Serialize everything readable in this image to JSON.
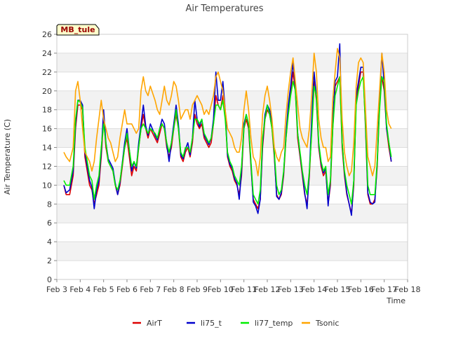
{
  "chart_data": {
    "type": "line",
    "title": "Air Temperatures",
    "xlabel": "Time",
    "ylabel": "Air Temperature (C)",
    "site_label": "MB_tule",
    "xlim": [
      "Feb 3",
      "Feb 18"
    ],
    "ylim": [
      0,
      26
    ],
    "x_ticks": [
      "Feb 3",
      "Feb 4",
      "Feb 5",
      "Feb 6",
      "Feb 7",
      "Feb 8",
      "Feb 9",
      "Feb 10",
      "Feb 11",
      "Feb 12",
      "Feb 13",
      "Feb 14",
      "Feb 15",
      "Feb 16",
      "Feb 17",
      "Feb 18"
    ],
    "y_ticks": [
      0,
      2,
      4,
      6,
      8,
      10,
      12,
      14,
      16,
      18,
      20,
      22,
      24,
      26
    ],
    "grid": "horizontal bands",
    "legend_position": "bottom",
    "x_unit": "days since Feb 3",
    "series": [
      {
        "name": "AirT",
        "color": "#dd0000",
        "x": [
          0.3,
          0.4,
          0.55,
          0.7,
          0.8,
          0.9,
          1.0,
          1.1,
          1.2,
          1.4,
          1.5,
          1.6,
          1.7,
          1.8,
          1.9,
          2.0,
          2.1,
          2.2,
          2.3,
          2.4,
          2.5,
          2.6,
          2.7,
          2.9,
          3.0,
          3.2,
          3.3,
          3.4,
          3.5,
          3.6,
          3.7,
          3.8,
          3.9,
          4.0,
          4.2,
          4.3,
          4.4,
          4.5,
          4.6,
          4.7,
          4.8,
          4.9,
          5.0,
          5.1,
          5.2,
          5.3,
          5.4,
          5.5,
          5.6,
          5.7,
          5.8,
          5.9,
          6.0,
          6.1,
          6.2,
          6.3,
          6.4,
          6.5,
          6.6,
          6.7,
          6.8,
          6.9,
          7.0,
          7.1,
          7.2,
          7.3,
          7.4,
          7.5,
          7.6,
          7.7,
          7.8,
          7.9,
          8.0,
          8.1,
          8.2,
          8.3,
          8.4,
          8.5,
          8.6,
          8.7,
          8.8,
          8.9,
          9.0,
          9.1,
          9.2,
          9.3,
          9.4,
          9.5,
          9.6,
          9.7,
          9.8,
          9.9,
          10.0,
          10.1,
          10.2,
          10.3,
          10.4,
          10.5,
          10.6,
          10.7,
          10.8,
          10.9,
          11.0,
          11.1,
          11.2,
          11.3,
          11.4,
          11.5,
          11.6,
          11.7,
          11.8,
          11.9,
          12.0,
          12.1,
          12.2,
          12.3,
          12.4,
          12.5,
          12.6,
          12.7,
          12.8,
          12.9,
          13.0,
          13.1,
          13.2,
          13.3,
          13.4,
          13.5,
          13.6,
          13.7,
          13.8,
          13.9,
          14.0,
          14.1,
          14.2,
          14.3
        ],
        "values": [
          10,
          9,
          9,
          11,
          16,
          18.5,
          18.5,
          18,
          13,
          10,
          9.5,
          8,
          9,
          10,
          13,
          17,
          14,
          12.5,
          12,
          11.5,
          10,
          9,
          10,
          14,
          15,
          11,
          12,
          11.5,
          14,
          16,
          17.5,
          16,
          15,
          16,
          15,
          14.5,
          15.5,
          16.5,
          16,
          14,
          13,
          14,
          16,
          17.5,
          16,
          13,
          12.5,
          13.5,
          14,
          13,
          14.5,
          17.5,
          16.5,
          16,
          16.5,
          15,
          14.5,
          14,
          14.5,
          16.5,
          19.5,
          18.5,
          18,
          19.5,
          17.5,
          13,
          12,
          11.5,
          10.5,
          10,
          9,
          11,
          16,
          17,
          16,
          12,
          8.5,
          8,
          7.5,
          8.5,
          14,
          17,
          18,
          17.5,
          16,
          13,
          9,
          8.5,
          9,
          11,
          15,
          18,
          20,
          22,
          20,
          15,
          13,
          11,
          9,
          8,
          11,
          16,
          21,
          19,
          14,
          12,
          11,
          11.5,
          8,
          10,
          16,
          20.5,
          21,
          21.5,
          14,
          11,
          9,
          8,
          7,
          10,
          19,
          20.5,
          22,
          22,
          16,
          9,
          8,
          8,
          8.5,
          12,
          18.5,
          21.5,
          20,
          16,
          14,
          12.5
        ]
      },
      {
        "name": "li75_t",
        "color": "#0000cc",
        "x": [
          0.3,
          0.4,
          0.55,
          0.7,
          0.8,
          0.9,
          1.0,
          1.1,
          1.2,
          1.4,
          1.5,
          1.6,
          1.7,
          1.8,
          1.9,
          2.0,
          2.1,
          2.2,
          2.3,
          2.4,
          2.5,
          2.6,
          2.7,
          2.9,
          3.0,
          3.2,
          3.3,
          3.4,
          3.5,
          3.6,
          3.7,
          3.8,
          3.9,
          4.0,
          4.2,
          4.3,
          4.4,
          4.5,
          4.6,
          4.7,
          4.8,
          4.9,
          5.0,
          5.1,
          5.2,
          5.3,
          5.4,
          5.5,
          5.6,
          5.7,
          5.8,
          5.9,
          6.0,
          6.1,
          6.2,
          6.3,
          6.4,
          6.5,
          6.6,
          6.7,
          6.8,
          6.9,
          7.0,
          7.1,
          7.2,
          7.3,
          7.4,
          7.5,
          7.6,
          7.7,
          7.8,
          7.9,
          8.0,
          8.1,
          8.2,
          8.3,
          8.4,
          8.5,
          8.6,
          8.7,
          8.8,
          8.9,
          9.0,
          9.1,
          9.2,
          9.3,
          9.4,
          9.5,
          9.6,
          9.7,
          9.8,
          9.9,
          10.0,
          10.1,
          10.2,
          10.3,
          10.4,
          10.5,
          10.6,
          10.7,
          10.8,
          10.9,
          11.0,
          11.1,
          11.2,
          11.3,
          11.4,
          11.5,
          11.6,
          11.7,
          11.8,
          11.9,
          12.0,
          12.1,
          12.2,
          12.3,
          12.4,
          12.5,
          12.6,
          12.7,
          12.8,
          12.9,
          13.0,
          13.1,
          13.2,
          13.3,
          13.4,
          13.5,
          13.6,
          13.7,
          13.8,
          13.9,
          14.0,
          14.1,
          14.2,
          14.3
        ],
        "values": [
          10,
          9.2,
          9.5,
          11.5,
          16.5,
          19,
          19,
          18.5,
          13.5,
          10.5,
          9.8,
          7.5,
          9.5,
          10.5,
          13.5,
          18,
          14.5,
          12.8,
          12.3,
          11.8,
          10.2,
          9,
          10.3,
          14.5,
          16,
          11.5,
          12.5,
          11.8,
          14.5,
          16.5,
          18.5,
          16.3,
          15.3,
          16.5,
          15.3,
          14.8,
          16,
          17,
          16.5,
          14.3,
          12.5,
          14.5,
          16.5,
          18.5,
          16.5,
          13.2,
          12.8,
          13.8,
          14.5,
          13.2,
          15,
          19,
          17,
          16.2,
          17,
          15.3,
          14.8,
          14.3,
          15,
          17,
          22,
          19,
          19,
          21,
          18,
          13.2,
          12.2,
          11.8,
          10.7,
          10.2,
          8.5,
          11.5,
          16.5,
          17.5,
          16.5,
          12.3,
          8.2,
          7.8,
          7,
          8.5,
          14.5,
          17.5,
          18.5,
          18,
          16.5,
          13.3,
          8.8,
          8.5,
          9.2,
          11.3,
          15.5,
          18.5,
          20.5,
          23,
          20.5,
          15.5,
          13.3,
          11.3,
          9.2,
          7.5,
          11.5,
          17,
          22,
          19.5,
          14.3,
          12.3,
          11.3,
          11.8,
          7.8,
          10.5,
          17,
          21,
          21.5,
          25,
          14.5,
          11.3,
          9.2,
          8,
          6.8,
          10.5,
          19.5,
          21,
          22.5,
          22.5,
          16.5,
          9.2,
          8.2,
          8,
          8.2,
          12.5,
          19,
          24,
          20.5,
          16,
          14.5,
          12.5
        ]
      },
      {
        "name": "li77_temp",
        "color": "#00ee00",
        "x": [
          0.3,
          0.4,
          0.55,
          0.7,
          0.8,
          0.9,
          1.0,
          1.1,
          1.2,
          1.4,
          1.5,
          1.6,
          1.7,
          1.8,
          1.9,
          2.0,
          2.1,
          2.2,
          2.3,
          2.4,
          2.5,
          2.6,
          2.7,
          2.9,
          3.0,
          3.2,
          3.3,
          3.4,
          3.5,
          3.6,
          3.7,
          3.8,
          3.9,
          4.0,
          4.2,
          4.3,
          4.4,
          4.5,
          4.6,
          4.7,
          4.8,
          4.9,
          5.0,
          5.1,
          5.2,
          5.3,
          5.4,
          5.5,
          5.6,
          5.7,
          5.8,
          5.9,
          6.0,
          6.1,
          6.2,
          6.3,
          6.4,
          6.5,
          6.6,
          6.7,
          6.8,
          6.9,
          7.0,
          7.1,
          7.2,
          7.3,
          7.4,
          7.5,
          7.6,
          7.7,
          7.8,
          7.9,
          8.0,
          8.1,
          8.2,
          8.3,
          8.4,
          8.5,
          8.6,
          8.7,
          8.8,
          8.9,
          9.0,
          9.1,
          9.2,
          9.3,
          9.4,
          9.5,
          9.6,
          9.7,
          9.8,
          9.9,
          10.0,
          10.1,
          10.2,
          10.3,
          10.4,
          10.5,
          10.6,
          10.7,
          10.8,
          10.9,
          11.0,
          11.1,
          11.2,
          11.3,
          11.4,
          11.5,
          11.6,
          11.7,
          11.8,
          11.9,
          12.0,
          12.1,
          12.2,
          12.3,
          12.4,
          12.5,
          12.6,
          12.7,
          12.8,
          12.9,
          13.0,
          13.1,
          13.2,
          13.3,
          13.4,
          13.5,
          13.6,
          13.7,
          13.8,
          13.9,
          14.0,
          14.1,
          14.2,
          14.3
        ],
        "values": [
          10.5,
          10,
          10,
          12,
          17,
          19,
          18.8,
          18.2,
          14,
          11,
          10.5,
          8.5,
          10,
          11,
          14,
          16.5,
          14.5,
          12.5,
          12,
          11.5,
          10,
          9.5,
          10.5,
          14,
          15.5,
          12,
          12.5,
          12,
          14,
          16,
          16.5,
          16,
          15.5,
          16,
          15.5,
          15,
          16,
          16.5,
          16,
          14.5,
          13.5,
          14.5,
          16,
          18,
          16,
          13.5,
          13,
          14,
          14,
          13.5,
          15,
          17,
          17,
          16.5,
          17,
          15.5,
          15,
          14.5,
          15,
          16.5,
          18.5,
          18.5,
          18,
          19,
          17,
          13.5,
          12.5,
          12,
          11,
          10.5,
          10,
          12,
          16,
          17.5,
          16.5,
          12.5,
          9,
          8.5,
          8,
          9.5,
          15,
          17,
          18.5,
          17.5,
          16,
          13.5,
          10,
          9,
          9.5,
          11.5,
          15,
          17.5,
          19.5,
          21,
          20,
          15.5,
          13.5,
          11.5,
          10,
          9,
          11.5,
          15.5,
          20.5,
          19.5,
          14.5,
          12.5,
          11.5,
          12,
          9,
          10.5,
          16,
          19.5,
          20.5,
          21.5,
          14.5,
          11.5,
          10,
          9,
          8,
          10.5,
          18.5,
          20,
          21,
          21.5,
          16.5,
          10,
          9,
          9,
          9,
          12.5,
          18,
          21.5,
          21,
          16.5,
          14.5,
          13
        ]
      },
      {
        "name": "Tsonic",
        "color": "#ffa500",
        "x": [
          0.3,
          0.4,
          0.55,
          0.7,
          0.8,
          0.9,
          1.0,
          1.1,
          1.2,
          1.4,
          1.5,
          1.6,
          1.7,
          1.8,
          1.9,
          2.0,
          2.1,
          2.2,
          2.3,
          2.4,
          2.5,
          2.6,
          2.7,
          2.9,
          3.0,
          3.2,
          3.3,
          3.4,
          3.5,
          3.6,
          3.7,
          3.8,
          3.9,
          4.0,
          4.2,
          4.3,
          4.4,
          4.5,
          4.6,
          4.7,
          4.8,
          4.9,
          5.0,
          5.1,
          5.2,
          5.3,
          5.4,
          5.5,
          5.6,
          5.7,
          5.8,
          5.9,
          6.0,
          6.1,
          6.2,
          6.3,
          6.4,
          6.5,
          6.6,
          6.7,
          6.8,
          6.9,
          7.0,
          7.1,
          7.2,
          7.3,
          7.4,
          7.5,
          7.6,
          7.7,
          7.8,
          7.9,
          8.0,
          8.1,
          8.2,
          8.3,
          8.4,
          8.5,
          8.6,
          8.7,
          8.8,
          8.9,
          9.0,
          9.1,
          9.2,
          9.3,
          9.4,
          9.5,
          9.6,
          9.7,
          9.8,
          9.9,
          10.0,
          10.1,
          10.2,
          10.3,
          10.4,
          10.5,
          10.6,
          10.7,
          10.8,
          10.9,
          11.0,
          11.1,
          11.2,
          11.3,
          11.4,
          11.5,
          11.6,
          11.7,
          11.8,
          11.9,
          12.0,
          12.1,
          12.2,
          12.3,
          12.4,
          12.5,
          12.6,
          12.7,
          12.8,
          12.9,
          13.0,
          13.1,
          13.2,
          13.3,
          13.4,
          13.5,
          13.6,
          13.7,
          13.8,
          13.9,
          14.0,
          14.1,
          14.2,
          14.3
        ],
        "values": [
          13.5,
          13,
          12.5,
          14,
          20,
          21,
          19,
          16,
          13.5,
          12.5,
          11.5,
          12.5,
          15,
          17,
          19,
          17,
          16,
          15,
          14.5,
          13.5,
          12.5,
          13,
          15,
          18,
          16.5,
          16.5,
          16,
          15.5,
          16,
          20,
          21.5,
          20,
          19.5,
          20.5,
          19,
          18,
          17.5,
          19,
          20.5,
          19,
          18.5,
          19.5,
          21,
          20.5,
          19,
          17,
          17.5,
          18,
          18,
          17,
          18.5,
          19,
          19.5,
          19,
          18.5,
          17.5,
          18,
          17.5,
          18.5,
          19.5,
          21.5,
          22,
          21,
          20,
          18,
          16,
          15.5,
          15,
          14,
          13.5,
          13.5,
          15,
          18,
          20,
          18,
          15,
          13,
          12.5,
          11,
          13,
          17.5,
          19.5,
          20.5,
          19,
          17,
          14,
          13,
          12.5,
          13.5,
          14,
          17.5,
          20,
          22,
          23.5,
          21,
          18.5,
          16,
          15,
          14.5,
          14,
          16,
          19.5,
          24,
          22,
          17,
          15,
          14,
          14,
          12.5,
          13,
          19,
          22,
          24.5,
          23.5,
          17,
          13.5,
          12,
          11,
          11.5,
          14.5,
          20.5,
          23,
          23.5,
          23,
          18,
          13,
          12,
          11,
          12,
          16,
          20,
          24,
          22,
          18,
          16.5,
          16
        ]
      }
    ]
  }
}
